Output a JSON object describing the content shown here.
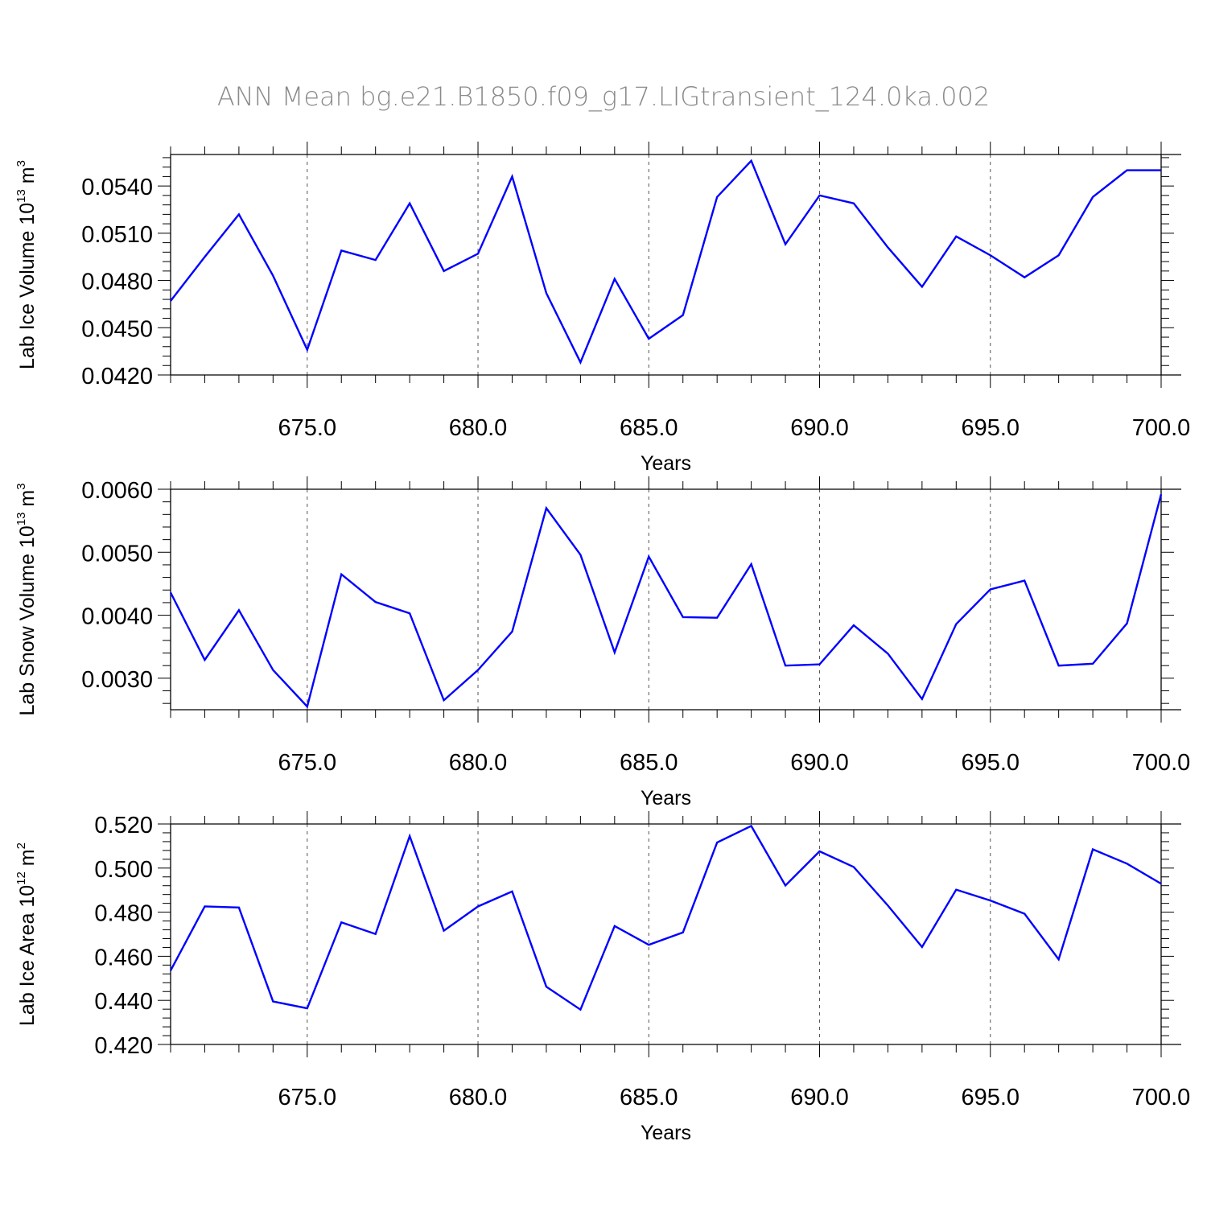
{
  "title": "ANN Mean bg.e21.B1850.f09_g17.LIGtransient_124.0ka.002",
  "line_color": "#0000ff",
  "chart_data": [
    {
      "type": "line",
      "xlabel": "Years",
      "ylabel": {
        "main": "Lab Ice Volume 10",
        "exp": "13",
        "unit": " m",
        "unit_exp": "3"
      },
      "xlim": [
        671,
        700
      ],
      "ylim": [
        0.042,
        0.056
      ],
      "xticks": [
        675,
        680,
        685,
        690,
        695,
        700
      ],
      "xtick_labels": [
        "675.0",
        "680.0",
        "685.0",
        "690.0",
        "695.0",
        "700.0"
      ],
      "yticks": [
        0.042,
        0.045,
        0.048,
        0.051,
        0.054
      ],
      "ytick_labels": [
        "0.0420",
        "0.0450",
        "0.0480",
        "0.0510",
        "0.0540"
      ],
      "grid": "vertical dashed at major x ticks",
      "series": [
        {
          "x": [
            671,
            672,
            673,
            674,
            675,
            676,
            677,
            678,
            679,
            680,
            681,
            682,
            683,
            684,
            685,
            686,
            687,
            688,
            689,
            690,
            691,
            692,
            693,
            694,
            695,
            696,
            697,
            698,
            699,
            700
          ],
          "values": [
            0.0467,
            0.0495,
            0.0522,
            0.0483,
            0.0436,
            0.0499,
            0.0493,
            0.0529,
            0.0486,
            0.0497,
            0.0546,
            0.0472,
            0.0428,
            0.0481,
            0.0443,
            0.0458,
            0.0533,
            0.0556,
            0.0503,
            0.0534,
            0.0529,
            0.0501,
            0.0476,
            0.0508,
            0.0496,
            0.0482,
            0.0496,
            0.0533,
            0.055,
            0.055
          ]
        }
      ]
    },
    {
      "type": "line",
      "xlabel": "Years",
      "ylabel": {
        "main": "Lab Snow Volume 10",
        "exp": "13",
        "unit": " m",
        "unit_exp": "3"
      },
      "xlim": [
        671,
        700
      ],
      "ylim": [
        0.0025,
        0.006
      ],
      "xticks": [
        675,
        680,
        685,
        690,
        695,
        700
      ],
      "xtick_labels": [
        "675.0",
        "680.0",
        "685.0",
        "690.0",
        "695.0",
        "700.0"
      ],
      "yticks": [
        0.003,
        0.004,
        0.005,
        0.006
      ],
      "ytick_labels": [
        "0.0030",
        "0.0040",
        "0.0050",
        "0.0060"
      ],
      "grid": "vertical dashed at major x ticks",
      "series": [
        {
          "x": [
            671,
            672,
            673,
            674,
            675,
            676,
            677,
            678,
            679,
            680,
            681,
            682,
            683,
            684,
            685,
            686,
            687,
            688,
            689,
            690,
            691,
            692,
            693,
            694,
            695,
            696,
            697,
            698,
            699,
            700
          ],
          "values": [
            0.00436,
            0.00329,
            0.00408,
            0.00313,
            0.00255,
            0.00465,
            0.00421,
            0.00403,
            0.00265,
            0.00313,
            0.00374,
            0.0057,
            0.00496,
            0.00341,
            0.00493,
            0.00397,
            0.00396,
            0.00481,
            0.0032,
            0.00322,
            0.00384,
            0.00339,
            0.00267,
            0.00386,
            0.00441,
            0.00455,
            0.0032,
            0.00323,
            0.00387,
            0.00592
          ]
        }
      ]
    },
    {
      "type": "line",
      "xlabel": "Years",
      "ylabel": {
        "main": "Lab Ice Area 10",
        "exp": "12",
        "unit": " m",
        "unit_exp": "2"
      },
      "xlim": [
        671,
        700
      ],
      "ylim": [
        0.42,
        0.52
      ],
      "xticks": [
        675,
        680,
        685,
        690,
        695,
        700
      ],
      "xtick_labels": [
        "675.0",
        "680.0",
        "685.0",
        "690.0",
        "695.0",
        "700.0"
      ],
      "yticks": [
        0.42,
        0.44,
        0.46,
        0.48,
        0.5,
        0.52
      ],
      "ytick_labels": [
        "0.420",
        "0.440",
        "0.460",
        "0.480",
        "0.500",
        "0.520"
      ],
      "grid": "vertical dashed at major x ticks",
      "series": [
        {
          "x": [
            671,
            672,
            673,
            674,
            675,
            676,
            677,
            678,
            679,
            680,
            681,
            682,
            683,
            684,
            685,
            686,
            687,
            688,
            689,
            690,
            691,
            692,
            693,
            694,
            695,
            696,
            697,
            698,
            699,
            700
          ],
          "values": [
            0.4535,
            0.4826,
            0.4821,
            0.4395,
            0.4364,
            0.4754,
            0.4701,
            0.5145,
            0.4716,
            0.4826,
            0.4894,
            0.4462,
            0.4358,
            0.4737,
            0.4652,
            0.4708,
            0.5116,
            0.5191,
            0.4921,
            0.5076,
            0.5005,
            0.483,
            0.4642,
            0.4902,
            0.4853,
            0.4793,
            0.4586,
            0.5085,
            0.502,
            0.4929
          ]
        }
      ]
    }
  ]
}
